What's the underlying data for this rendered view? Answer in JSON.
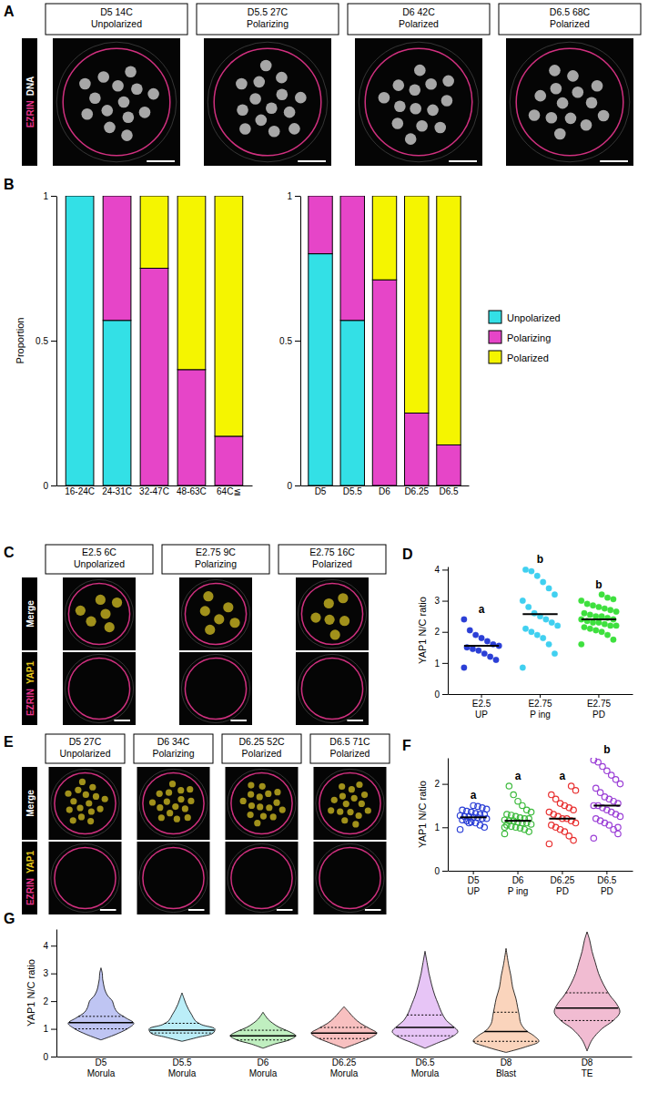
{
  "image_panels": [
    {
      "letter": "A",
      "row_labels": [
        [
          {
            "text": "EZRIN",
            "color": "#e8338b"
          },
          {
            "text": "DNA",
            "color": "#ffffff"
          }
        ]
      ],
      "headers": [
        [
          "D5 14C",
          "Unpolarized"
        ],
        [
          "D5.5 27C",
          "Polarizing"
        ],
        [
          "D6 42C",
          "Polarized"
        ],
        [
          "D6.5 68C",
          "Polarized"
        ]
      ]
    },
    {
      "letter": "C",
      "row_labels": [
        [
          {
            "text": "Merge",
            "color": "#ffffff"
          }
        ],
        [
          {
            "text": "EZRIN",
            "color": "#e8338b"
          },
          {
            "text": "YAP1",
            "color": "#e6c619"
          }
        ]
      ],
      "headers": [
        [
          "E2.5 6C",
          "Unpolarized"
        ],
        [
          "E2.75 9C",
          "Polarizing"
        ],
        [
          "E2.75 16C",
          "Polarized"
        ]
      ]
    },
    {
      "letter": "E",
      "row_labels": [
        [
          {
            "text": "Merge",
            "color": "#ffffff"
          }
        ],
        [
          {
            "text": "EZRIN",
            "color": "#e8338b"
          },
          {
            "text": "YAP1",
            "color": "#e6c619"
          }
        ]
      ],
      "headers": [
        [
          "D5 27C",
          "Unpolarized"
        ],
        [
          "D6 34C",
          "Polarizing"
        ],
        [
          "D6.25 52C",
          "Polarized"
        ],
        [
          "D6.5 71C",
          "Polarized"
        ]
      ]
    }
  ],
  "chart_data": [
    {
      "panel": "B",
      "type": "bar",
      "stacked": true,
      "y_label": "Proportion",
      "categories": [
        "16-24C",
        "24-31C",
        "32-47C",
        "48-63C",
        "64C≦"
      ],
      "series": [
        {
          "name": "Unpolarized",
          "color": "#33e0e6",
          "values": [
            1,
            0.57,
            0,
            0,
            0
          ]
        },
        {
          "name": "Polarizing",
          "color": "#e645c8",
          "values": [
            0,
            0.43,
            0.75,
            0.4,
            0.17
          ]
        },
        {
          "name": "Polarized",
          "color": "#f5f500",
          "values": [
            0,
            0,
            0.25,
            0.6,
            0.83
          ]
        }
      ],
      "ylim": [
        0,
        1
      ],
      "yticks": [
        0,
        0.5,
        1
      ]
    },
    {
      "type": "bar",
      "stacked": true,
      "legend": "right",
      "categories": [
        "D5",
        "D5.5",
        "D6",
        "D6.25",
        "D6.5"
      ],
      "series": [
        {
          "name": "Unpolarized",
          "color": "#33e0e6",
          "values": [
            0.8,
            0.57,
            0,
            0,
            0
          ]
        },
        {
          "name": "Polarizing",
          "color": "#e645c8",
          "values": [
            0.2,
            0.43,
            0.71,
            0.25,
            0.14
          ]
        },
        {
          "name": "Polarized",
          "color": "#f5f500",
          "values": [
            0,
            0,
            0.29,
            0.75,
            0.86
          ]
        }
      ],
      "ylim": [
        0,
        1
      ],
      "yticks": [
        0,
        0.5,
        1
      ]
    },
    {
      "panel": "D",
      "type": "scatter",
      "marker": "filled-circle",
      "y_label": "YAP1 N/C ratio",
      "categories": [
        "E2.5 UP",
        "E2.75 P ing",
        "E2.75 PD"
      ],
      "groups": [
        {
          "color": "#2b3fd6",
          "letter": "a",
          "mean": 1.55,
          "values": [
            0.85,
            1.1,
            1.2,
            1.3,
            1.4,
            1.45,
            1.5,
            1.55,
            1.6,
            1.7,
            1.8,
            1.9,
            2.05,
            2.4
          ]
        },
        {
          "color": "#40d0f0",
          "letter": "b",
          "mean": 2.57,
          "values": [
            0.85,
            1.3,
            1.6,
            1.8,
            1.9,
            2.0,
            2.1,
            2.2,
            2.3,
            2.4,
            2.5,
            2.6,
            2.8,
            3.0,
            3.2,
            3.4,
            3.6,
            3.8,
            3.95,
            4.0
          ]
        },
        {
          "color": "#3ee03e",
          "letter": "b",
          "mean": 2.4,
          "values": [
            1.6,
            1.75,
            1.9,
            2.0,
            2.05,
            2.1,
            2.15,
            2.2,
            2.2,
            2.25,
            2.3,
            2.3,
            2.35,
            2.4,
            2.4,
            2.45,
            2.5,
            2.5,
            2.55,
            2.6,
            2.65,
            2.7,
            2.75,
            2.8,
            2.85,
            2.9,
            3.0,
            3.05,
            3.1,
            3.2
          ]
        }
      ],
      "ylim": [
        0,
        4.1
      ],
      "yticks": [
        0,
        1,
        2,
        3,
        4
      ]
    },
    {
      "panel": "F",
      "type": "scatter",
      "marker": "open-circle",
      "y_label": "YAP1 N/C ratio",
      "categories": [
        "D5 UP",
        "D6 P ing",
        "D6.25 PD",
        "D6.5 PD"
      ],
      "groups": [
        {
          "color": "#2b3fd6",
          "letter": "a",
          "mean": 1.23,
          "values": [
            0.95,
            1.0,
            1.05,
            1.1,
            1.12,
            1.15,
            1.17,
            1.2,
            1.2,
            1.22,
            1.23,
            1.25,
            1.25,
            1.27,
            1.3,
            1.3,
            1.32,
            1.35,
            1.37,
            1.4,
            1.42,
            1.45,
            1.48,
            1.5,
            1.1
          ]
        },
        {
          "color": "#3cba3c",
          "letter": "a",
          "mean": 1.15,
          "values": [
            0.85,
            0.9,
            0.95,
            0.98,
            1.0,
            1.02,
            1.05,
            1.07,
            1.1,
            1.1,
            1.12,
            1.15,
            1.15,
            1.17,
            1.2,
            1.2,
            1.22,
            1.25,
            1.28,
            1.3,
            1.35,
            1.4,
            1.5,
            1.6,
            1.75,
            1.95,
            1.0
          ]
        },
        {
          "color": "#e83030",
          "letter": "a",
          "mean": 1.2,
          "values": [
            0.62,
            0.7,
            0.8,
            0.9,
            0.95,
            1.0,
            1.05,
            1.1,
            1.15,
            1.2,
            1.2,
            1.25,
            1.3,
            1.35,
            1.4,
            1.45,
            1.5,
            1.55,
            1.65,
            1.75,
            1.85,
            1.95
          ]
        },
        {
          "color": "#9b3fd6",
          "letter": "b",
          "mean": 1.5,
          "values": [
            0.75,
            0.85,
            0.95,
            1.05,
            1.1,
            1.15,
            1.2,
            1.25,
            1.3,
            1.35,
            1.4,
            1.45,
            1.5,
            1.5,
            1.55,
            1.6,
            1.65,
            1.7,
            1.8,
            1.9,
            2.0,
            2.1,
            2.2,
            2.3,
            2.4,
            2.5,
            2.55,
            1.0
          ]
        }
      ],
      "ylim": [
        0,
        2.6
      ],
      "yticks": [
        0,
        1,
        2
      ]
    },
    {
      "panel": "G",
      "type": "violin",
      "y_label": "YAP1 N/C ratio",
      "categories": [
        "D5 Morula",
        "D5.5 Morula",
        "D6 Morula",
        "D6.25 Morula",
        "D6.5 Morula",
        "D8 Blast",
        "D8 TE"
      ],
      "violins": [
        {
          "color": "#2b3fd6",
          "median": 1.22,
          "quartiles": [
            1.0,
            1.45
          ],
          "levels": [
            0.6,
            0.8,
            1.0,
            1.2,
            1.4,
            1.6,
            1.8,
            2.0,
            2.2,
            2.4,
            2.6,
            2.8,
            3.0,
            3.2
          ],
          "widths": [
            0,
            0.45,
            0.8,
            1.0,
            0.75,
            0.5,
            0.4,
            0.35,
            0.2,
            0.12,
            0.08,
            0.05,
            0.04,
            0
          ]
        },
        {
          "color": "#1fc8e8",
          "median": 0.95,
          "quartiles": [
            0.85,
            1.2
          ],
          "levels": [
            0.55,
            0.7,
            0.85,
            1.0,
            1.15,
            1.3,
            1.5,
            1.7,
            1.9,
            2.1,
            2.3
          ],
          "widths": [
            0,
            0.5,
            0.95,
            1.0,
            0.6,
            0.4,
            0.3,
            0.2,
            0.12,
            0.06,
            0
          ]
        },
        {
          "color": "#2fc92f",
          "median": 0.75,
          "quartiles": [
            0.6,
            0.95
          ],
          "levels": [
            0.3,
            0.45,
            0.6,
            0.75,
            0.9,
            1.05,
            1.2,
            1.35,
            1.6
          ],
          "widths": [
            0,
            0.35,
            0.8,
            1.0,
            0.8,
            0.5,
            0.3,
            0.15,
            0
          ]
        },
        {
          "color": "#e83030",
          "median": 0.85,
          "quartiles": [
            0.65,
            1.05
          ],
          "levels": [
            0.3,
            0.5,
            0.7,
            0.85,
            1.0,
            1.2,
            1.4,
            1.6,
            1.8
          ],
          "widths": [
            0,
            0.45,
            0.85,
            1.0,
            0.8,
            0.5,
            0.3,
            0.15,
            0
          ]
        },
        {
          "color": "#b040e0",
          "median": 1.05,
          "quartiles": [
            0.75,
            1.5
          ],
          "levels": [
            0.3,
            0.5,
            0.7,
            0.9,
            1.1,
            1.3,
            1.6,
            1.9,
            2.2,
            2.6,
            3.0,
            3.4,
            3.8
          ],
          "widths": [
            0,
            0.4,
            0.8,
            1.0,
            0.85,
            0.65,
            0.5,
            0.4,
            0.3,
            0.2,
            0.12,
            0.06,
            0
          ]
        },
        {
          "color": "#f07020",
          "median": 0.9,
          "quartiles": [
            0.55,
            1.6
          ],
          "levels": [
            0.15,
            0.35,
            0.55,
            0.75,
            0.95,
            1.2,
            1.5,
            1.8,
            2.1,
            2.5,
            2.9,
            3.3,
            3.9
          ],
          "widths": [
            0,
            0.6,
            1.0,
            0.85,
            0.6,
            0.45,
            0.4,
            0.35,
            0.3,
            0.2,
            0.15,
            0.08,
            0
          ]
        },
        {
          "color": "#d0206a",
          "median": 1.75,
          "quartiles": [
            1.3,
            2.3
          ],
          "levels": [
            0.2,
            0.6,
            1.0,
            1.3,
            1.6,
            1.9,
            2.2,
            2.6,
            3.0,
            3.4,
            3.8,
            4.2,
            4.5
          ],
          "widths": [
            0,
            0.15,
            0.45,
            0.8,
            1.0,
            0.9,
            0.7,
            0.5,
            0.35,
            0.25,
            0.15,
            0.08,
            0
          ]
        }
      ],
      "ylim": [
        0,
        4.6
      ],
      "yticks": [
        0,
        1,
        2,
        3,
        4
      ]
    }
  ]
}
